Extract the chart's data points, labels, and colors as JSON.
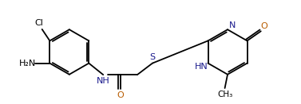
{
  "bg_color": "#ffffff",
  "line_color": "#000000",
  "heteroatom_color": "#1a1a8c",
  "oxygen_color": "#b85c00",
  "figsize": [
    3.77,
    1.31
  ],
  "dpi": 100,
  "xlim": [
    0,
    10.5
  ],
  "ylim": [
    0,
    3.8
  ],
  "lw": 1.3,
  "fs": 8.0,
  "dbo": 0.07
}
